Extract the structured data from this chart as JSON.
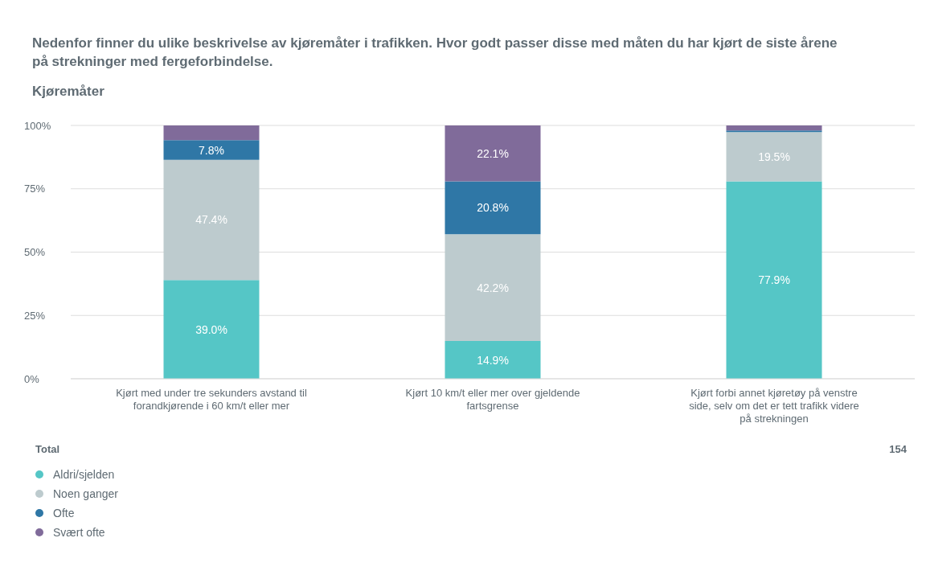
{
  "chart_data": {
    "type": "bar",
    "title": "Nedenfor finner du ulike beskrivelse av kjøremåter i trafikken. Hvor godt passer disse med måten du har kjørt de siste årene på strekninger med fergeforbindelse.",
    "subtitle": "Kjøremåter",
    "categories": [
      "Kjørt med under tre sekunders avstand til forandkjørende i 60 km/t eller mer",
      "Kjørt 10 km/t eller mer over gjeldende fartsgrense",
      "Kjørt forbi annet kjøretøy på venstre side, selv om det er tett trafikk videre på strekningen"
    ],
    "stacked": true,
    "ylim": [
      0,
      100
    ],
    "yticks": [
      {
        "value": 0,
        "label": "0%"
      },
      {
        "value": 25,
        "label": "25%"
      },
      {
        "value": 50,
        "label": "50%"
      },
      {
        "value": 75,
        "label": "75%"
      },
      {
        "value": 100,
        "label": "100%"
      }
    ],
    "grid": "y",
    "legend": "bottom left",
    "legend_title": "Total",
    "annotations": [
      "154"
    ],
    "series": [
      {
        "name": "Aldri/sjelden",
        "color": "#55c6c6",
        "values": [
          39.0,
          14.9,
          77.9
        ],
        "value_labels": [
          "39.0%",
          "14.9%",
          "77.9%"
        ]
      },
      {
        "name": "Noen ganger",
        "color": "#bdcbce",
        "values": [
          47.4,
          42.2,
          19.5
        ],
        "value_labels": [
          "47.4%",
          "42.2%",
          "19.5%"
        ]
      },
      {
        "name": "Ofte",
        "color": "#2f77a6",
        "values": [
          7.8,
          20.8,
          0.6
        ],
        "value_labels": [
          "7.8%",
          "20.8%",
          null
        ]
      },
      {
        "name": "Svært ofte",
        "color": "#806b9a",
        "values": [
          5.8,
          22.1,
          2.0
        ],
        "value_labels": [
          null,
          "22.1%",
          null
        ]
      }
    ]
  }
}
